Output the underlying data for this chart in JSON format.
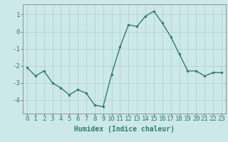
{
  "x": [
    0,
    1,
    2,
    3,
    4,
    5,
    6,
    7,
    8,
    9,
    10,
    11,
    12,
    13,
    14,
    15,
    16,
    17,
    18,
    19,
    20,
    21,
    22,
    23
  ],
  "y": [
    -2.1,
    -2.6,
    -2.3,
    -3.0,
    -3.3,
    -3.7,
    -3.4,
    -3.6,
    -4.3,
    -4.4,
    -2.5,
    -0.9,
    0.4,
    0.3,
    0.9,
    1.2,
    0.5,
    -0.3,
    -1.3,
    -2.3,
    -2.3,
    -2.6,
    -2.4,
    -2.4
  ],
  "line_color": "#2e7d72",
  "marker": "o",
  "marker_size": 2.0,
  "line_width": 1.0,
  "bg_color": "#cde8e8",
  "grid_color": "#b8d4d4",
  "axis_color": "#2e7d72",
  "xlabel": "Humidex (Indice chaleur)",
  "xlabel_fontsize": 7,
  "ylim": [
    -4.8,
    1.6
  ],
  "xlim": [
    -0.5,
    23.5
  ],
  "yticks": [
    -4,
    -3,
    -2,
    -1,
    0,
    1
  ],
  "xtick_labels": [
    "0",
    "1",
    "2",
    "3",
    "4",
    "5",
    "6",
    "7",
    "8",
    "9",
    "10",
    "11",
    "12",
    "13",
    "14",
    "15",
    "16",
    "17",
    "18",
    "19",
    "20",
    "21",
    "22",
    "23"
  ],
  "tick_fontsize": 6.5
}
